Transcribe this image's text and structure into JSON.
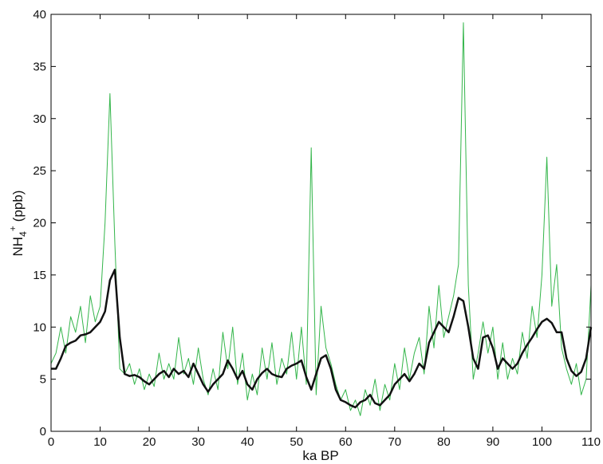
{
  "chart_data": {
    "type": "line",
    "xlabel": "ka BP",
    "ylabel": {
      "main": "NH",
      "sub": "4",
      "sup": "+",
      "unit": "(ppb)"
    },
    "x": [
      0,
      1,
      2,
      3,
      4,
      5,
      6,
      7,
      8,
      9,
      10,
      11,
      12,
      13,
      14,
      15,
      16,
      17,
      18,
      19,
      20,
      21,
      22,
      23,
      24,
      25,
      26,
      27,
      28,
      29,
      30,
      31,
      32,
      33,
      34,
      35,
      36,
      37,
      38,
      39,
      40,
      41,
      42,
      43,
      44,
      45,
      46,
      47,
      48,
      49,
      50,
      51,
      52,
      53,
      54,
      55,
      56,
      57,
      58,
      59,
      60,
      61,
      62,
      63,
      64,
      65,
      66,
      67,
      68,
      69,
      70,
      71,
      72,
      73,
      74,
      75,
      76,
      77,
      78,
      79,
      80,
      81,
      82,
      83,
      84,
      85,
      86,
      87,
      88,
      89,
      90,
      91,
      92,
      93,
      94,
      95,
      96,
      97,
      98,
      99,
      100,
      101,
      102,
      103,
      104,
      105,
      106,
      107,
      108,
      109,
      110
    ],
    "series": [
      {
        "color": "#33b54a",
        "width": 1,
        "values": [
          6.5,
          7.5,
          10,
          7.5,
          11,
          9.5,
          12,
          8.5,
          13,
          10.5,
          12,
          20,
          32.4,
          18,
          6,
          5.5,
          6.5,
          4.5,
          6,
          4,
          5.5,
          4.3,
          7.5,
          5,
          6.5,
          5,
          9,
          5.5,
          7,
          4.5,
          8,
          5,
          3.5,
          6,
          4,
          9.5,
          6,
          10,
          4.5,
          7.5,
          3,
          5.5,
          3.5,
          8,
          5,
          8.5,
          4.5,
          7,
          5.5,
          9.5,
          5,
          10,
          4.5,
          27.2,
          3.5,
          12,
          8,
          6.5,
          4.5,
          3,
          4,
          2,
          3,
          1.5,
          4,
          2.5,
          5,
          2,
          4.5,
          3,
          6.5,
          4,
          8,
          5,
          7.5,
          9,
          5.5,
          12,
          8,
          14,
          9,
          11,
          13,
          16,
          39.2,
          14,
          5,
          7.5,
          10.5,
          7.5,
          10,
          5,
          8.5,
          5,
          7,
          5.5,
          9.5,
          7,
          12,
          9,
          15,
          26.3,
          12,
          16,
          8,
          6,
          4.5,
          6.5,
          3.5,
          5,
          14
        ]
      },
      {
        "color": "#111111",
        "width": 2.5,
        "values": [
          6,
          6,
          7,
          8.2,
          8.5,
          8.7,
          9.2,
          9.3,
          9.5,
          10,
          10.5,
          11.5,
          14.5,
          15.5,
          9,
          5.5,
          5.3,
          5.4,
          5.2,
          4.8,
          4.5,
          5,
          5.5,
          5.8,
          5.2,
          6,
          5.5,
          5.8,
          5.2,
          6.5,
          5.5,
          4.5,
          3.8,
          4.5,
          5,
          5.5,
          6.8,
          6,
          5,
          5.8,
          4.5,
          4,
          5,
          5.6,
          6,
          5.5,
          5.3,
          5.2,
          6,
          6.3,
          6.5,
          6.8,
          5.2,
          4,
          5.5,
          7,
          7.3,
          6,
          4,
          3,
          2.8,
          2.5,
          2.3,
          2.8,
          3,
          3.5,
          2.7,
          2.5,
          3,
          3.5,
          4.5,
          5,
          5.5,
          4.8,
          5.5,
          6.5,
          6,
          8.5,
          9.5,
          10.5,
          10,
          9.5,
          11,
          12.8,
          12.5,
          10,
          7,
          6,
          9,
          9.2,
          8,
          6,
          7,
          6.5,
          6,
          6.5,
          7.5,
          8.3,
          9,
          9.8,
          10.5,
          10.8,
          10.4,
          9.5,
          9.5,
          7,
          5.8,
          5.3,
          5.7,
          7,
          10
        ]
      }
    ],
    "xlim": [
      0,
      110
    ],
    "xticks": [
      0,
      10,
      20,
      30,
      40,
      50,
      60,
      70,
      80,
      90,
      100,
      110
    ],
    "ylim": [
      0,
      40
    ],
    "yticks": [
      0,
      5,
      10,
      15,
      20,
      25,
      30,
      35,
      40
    ]
  }
}
